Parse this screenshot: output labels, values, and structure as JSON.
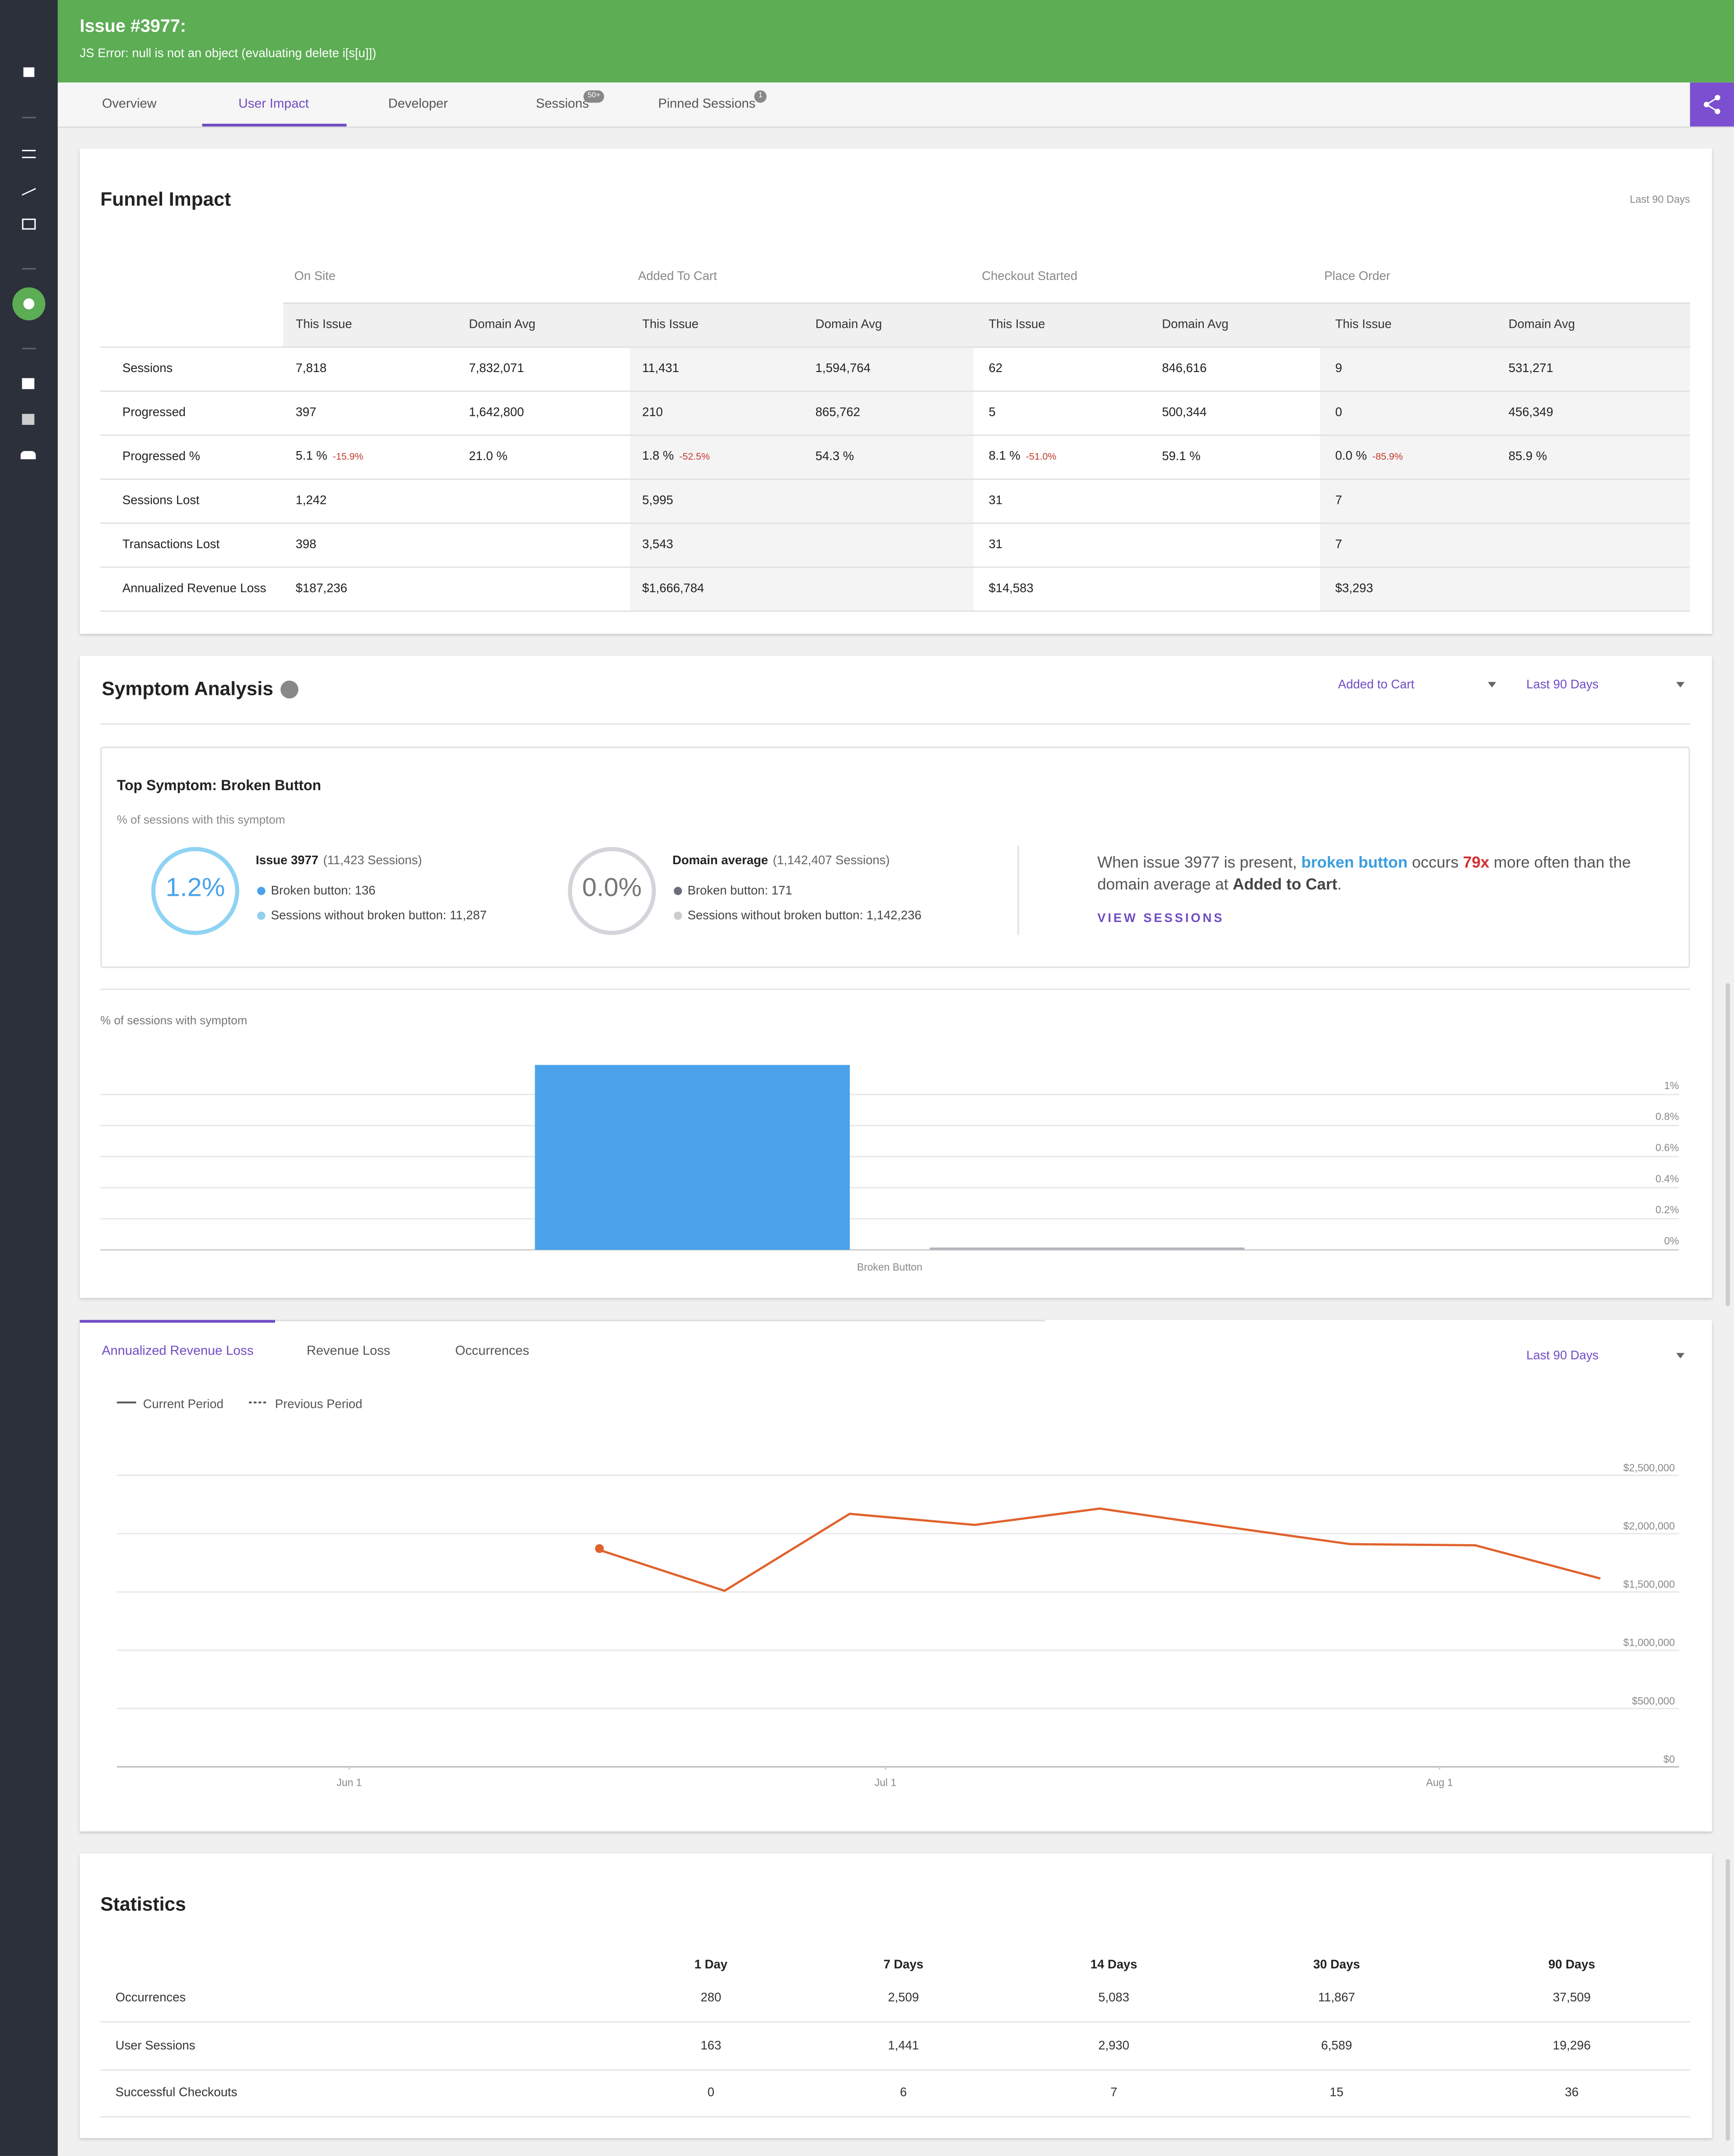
{
  "header": {
    "title": "Issue #3977:",
    "subtitle": "JS Error: null is not an object (evaluating delete i[s[u]])"
  },
  "tabs": [
    {
      "label": "Overview"
    },
    {
      "label": "User Impact",
      "active": true
    },
    {
      "label": "Developer"
    },
    {
      "label": "Sessions",
      "badge": "50+"
    },
    {
      "label": "Pinned Sessions",
      "badge": "1"
    }
  ],
  "funnel": {
    "title": "Funnel Impact",
    "range": "Last 90 Days",
    "stages": [
      "On Site",
      "Added To Cart",
      "Checkout Started",
      "Place Order"
    ],
    "subheads": [
      "This Issue",
      "Domain Avg"
    ],
    "rows": [
      {
        "label": "Sessions",
        "cells": [
          "7,818",
          "7,832,071",
          "11,431",
          "1,594,764",
          "62",
          "846,616",
          "9",
          "531,271"
        ]
      },
      {
        "label": "Progressed",
        "cells": [
          "397",
          "1,642,800",
          "210",
          "865,762",
          "5",
          "500,344",
          "0",
          "456,349"
        ]
      },
      {
        "label": "Progressed %",
        "cells": [
          "5.1 %",
          "21.0 %",
          "1.8 %",
          "54.3 %",
          "8.1 %",
          "59.1 %",
          "0.0 %",
          "85.9 %"
        ],
        "deltas": [
          "-15.9%",
          "-52.5%",
          "-51.0%",
          "-85.9%"
        ]
      },
      {
        "label": "Sessions Lost",
        "cells": [
          "1,242",
          "5,995",
          "31",
          "7"
        ]
      },
      {
        "label": "Transactions Lost",
        "cells": [
          "398",
          "3,543",
          "31",
          "7"
        ]
      },
      {
        "label": "Annualized Revenue Loss",
        "cells": [
          "$187,236",
          "$1,666,784",
          "$14,583",
          "$3,293"
        ]
      }
    ]
  },
  "symptom": {
    "title": "Symptom Analysis",
    "filter": "Added to Cart",
    "range": "Last 90 Days",
    "top_title": "Top Symptom: Broken Button",
    "caption": "% of sessions with this symptom",
    "issue": {
      "pct": "1.2%",
      "name": "Issue 3977",
      "sessions": "(11,423 Sessions)",
      "lines": [
        "Broken button: 136",
        "Sessions without broken button: 11,287"
      ]
    },
    "domain": {
      "pct": "0.0%",
      "name": "Domain average",
      "sessions": "(1,142,407 Sessions)",
      "lines": [
        "Broken button: 171",
        "Sessions without broken button: 1,142,236"
      ]
    },
    "insight": [
      "When issue 3977 is present, ",
      "broken button",
      " occurs ",
      "79x",
      " more often than the domain average at ",
      "Added to Cart",
      "."
    ],
    "link": "VIEW SESSIONS"
  },
  "chart_data": [
    {
      "type": "bar",
      "y_label": "% of sessions with symptom",
      "categories": [
        "Broken Button"
      ],
      "series": [
        {
          "color": "#4aa3ea",
          "values": [
            1.19
          ]
        },
        {
          "color": "#b3b6bb",
          "values": [
            0.015
          ]
        }
      ],
      "ylim": [
        0,
        1.2
      ],
      "yticks": [
        {
          "value": 0,
          "label": "0%"
        },
        {
          "value": 0.2,
          "label": "0.2%"
        },
        {
          "value": 0.4,
          "label": "0.4%"
        },
        {
          "value": 0.6,
          "label": "0.6%"
        },
        {
          "value": 0.8,
          "label": "0.8%"
        },
        {
          "value": 1,
          "label": "1%"
        }
      ],
      "grid": true
    },
    {
      "type": "line",
      "tabs": [
        "Annualized Revenue Loss",
        "Revenue Loss",
        "Occurrences"
      ],
      "range": "Last 90 Days",
      "legend": [
        {
          "name": "Current Period",
          "style": "solid"
        },
        {
          "name": "Previous Period",
          "style": "dashed"
        }
      ],
      "x": [
        14,
        21,
        28,
        35,
        42,
        49,
        56,
        63,
        70
      ],
      "series": [
        {
          "name": "Current Period",
          "color": "#e0622c",
          "values": [
            1860000,
            1510000,
            2170000,
            2075000,
            2215000,
            2060000,
            1910000,
            1900000,
            1615000
          ]
        }
      ],
      "xlim": [
        -13,
        74.4
      ],
      "xticks": [
        {
          "value": 0,
          "label": "Jun 1"
        },
        {
          "value": 30,
          "label": "Jul 1"
        },
        {
          "value": 61,
          "label": "Aug 1"
        }
      ],
      "ylim": [
        0,
        2500000
      ],
      "yticks": [
        {
          "value": 0,
          "label": "$0"
        },
        {
          "value": 500000,
          "label": "$500,000"
        },
        {
          "value": 1000000,
          "label": "$1,000,000"
        },
        {
          "value": 1500000,
          "label": "$1,500,000"
        },
        {
          "value": 2000000,
          "label": "$2,000,000"
        },
        {
          "value": 2500000,
          "label": "$2,500,000"
        }
      ],
      "grid": true
    }
  ],
  "statistics": {
    "title": "Statistics",
    "columns": [
      "1 Day",
      "7 Days",
      "14 Days",
      "30 Days",
      "90 Days"
    ],
    "rows": [
      {
        "label": "Occurrences",
        "cells": [
          "280",
          "2,509",
          "5,083",
          "11,867",
          "37,509"
        ]
      },
      {
        "label": "User Sessions",
        "cells": [
          "163",
          "1,441",
          "2,930",
          "6,589",
          "19,296"
        ]
      },
      {
        "label": "Successful Checkouts",
        "cells": [
          "0",
          "6",
          "7",
          "15",
          "36"
        ]
      }
    ]
  }
}
